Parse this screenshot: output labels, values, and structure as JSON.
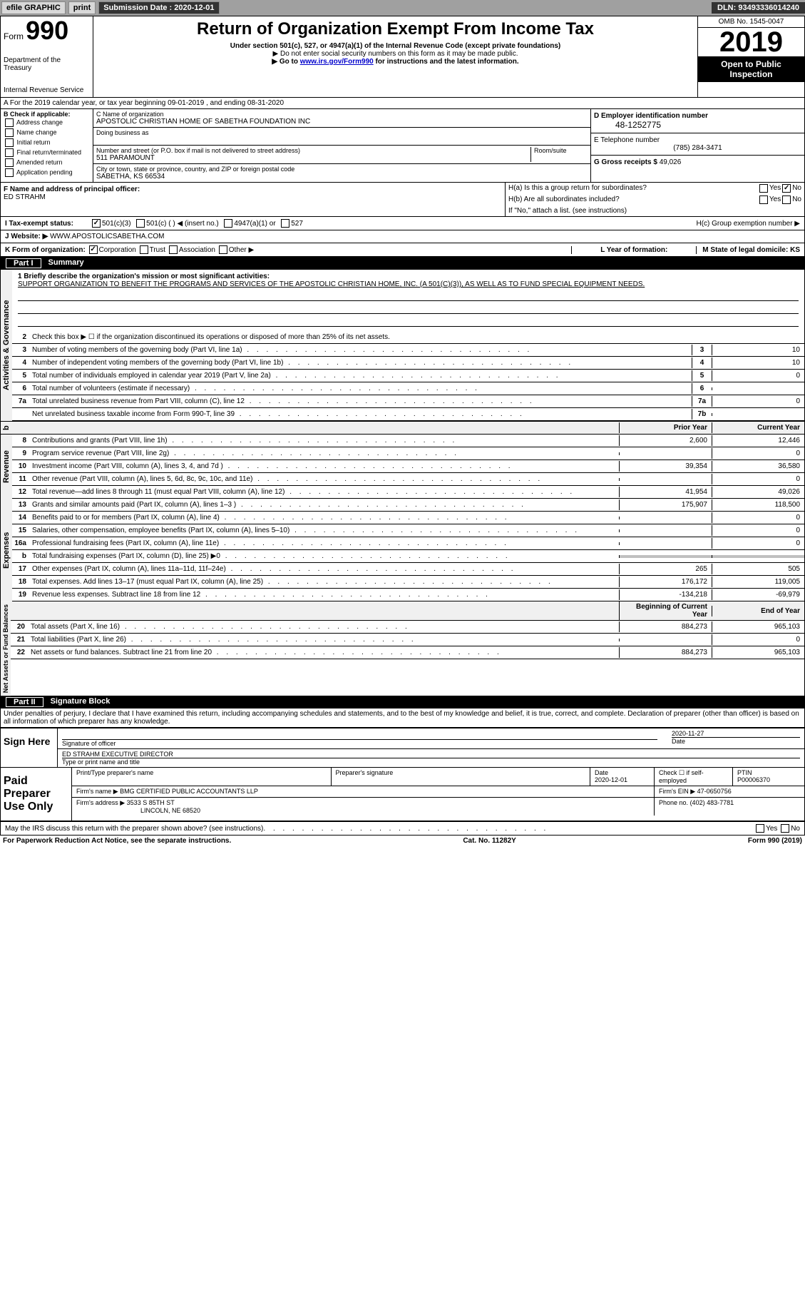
{
  "topbar": {
    "efile": "efile GRAPHIC",
    "print": "print",
    "submission_label": "Submission Date : 2020-12-01",
    "dln": "DLN: 93493336014240"
  },
  "form": {
    "form_word": "Form",
    "form_num": "990",
    "title": "Return of Organization Exempt From Income Tax",
    "subtitle": "Under section 501(c), 527, or 4947(a)(1) of the Internal Revenue Code (except private foundations)",
    "warning": "▶ Do not enter social security numbers on this form as it may be made public.",
    "goto_pre": "▶ Go to ",
    "goto_link": "www.irs.gov/Form990",
    "goto_post": " for instructions and the latest information.",
    "dept": "Department of the Treasury",
    "irs": "Internal Revenue Service",
    "omb": "OMB No. 1545-0047",
    "year": "2019",
    "open": "Open to Public Inspection"
  },
  "lineA": "A For the 2019 calendar year, or tax year beginning 09-01-2019  , and ending 08-31-2020",
  "sectionB": {
    "header": "B Check if applicable:",
    "items": [
      "Address change",
      "Name change",
      "Initial return",
      "Final return/terminated",
      "Amended return",
      "Application pending"
    ]
  },
  "sectionC": {
    "name_label": "C Name of organization",
    "name": "APOSTOLIC CHRISTIAN HOME OF SABETHA FOUNDATION INC",
    "dba_label": "Doing business as",
    "addr_label": "Number and street (or P.O. box if mail is not delivered to street address)",
    "room_label": "Room/suite",
    "address": "511 PARAMOUNT",
    "city_label": "City or town, state or province, country, and ZIP or foreign postal code",
    "city": "SABETHA, KS  66534"
  },
  "sectionD": {
    "label": "D Employer identification number",
    "ein": "48-1252775"
  },
  "sectionE": {
    "label": "E Telephone number",
    "phone": "(785) 284-3471"
  },
  "sectionF": {
    "label": "F Name and address of principal officer:",
    "name": "ED STRAHM"
  },
  "sectionG": {
    "label": "G Gross receipts $",
    "amount": "49,026"
  },
  "sectionH": {
    "a": "H(a)  Is this a group return for subordinates?",
    "b": "H(b)  Are all subordinates included?",
    "b_note": "If \"No,\" attach a list. (see instructions)",
    "c": "H(c)  Group exemption number ▶",
    "yes": "Yes",
    "no": "No"
  },
  "lineI": {
    "label": "I     Tax-exempt status:",
    "opts": [
      "501(c)(3)",
      "501(c) (  ) ◀ (insert no.)",
      "4947(a)(1) or",
      "527"
    ]
  },
  "lineJ": {
    "label": "J    Website: ▶",
    "value": "WWW.APOSTOLICSABETHA.COM"
  },
  "lineK": {
    "label": "K Form of organization:",
    "opts": [
      "Corporation",
      "Trust",
      "Association",
      "Other ▶"
    ]
  },
  "lineL": {
    "label": "L Year of formation:"
  },
  "lineM": {
    "label": "M State of legal domicile: KS"
  },
  "part1": {
    "num": "Part I",
    "title": "Summary"
  },
  "summary": {
    "mission_label": "1  Briefly describe the organization's mission or most significant activities:",
    "mission": "SUPPORT ORGANIZATION TO BENEFIT THE PROGRAMS AND SERVICES OF THE APOSTOLIC CHRISTIAN HOME, INC. (A 501(C)(3)), AS WELL AS TO FUND SPECIAL EQUIPMENT NEEDS.",
    "line2": "Check this box ▶ ☐ if the organization discontinued its operations or disposed of more than 25% of its net assets.",
    "lines_boxed": [
      {
        "n": "3",
        "label": "Number of voting members of the governing body (Part VI, line 1a)",
        "box": "3",
        "val": "10"
      },
      {
        "n": "4",
        "label": "Number of independent voting members of the governing body (Part VI, line 1b)",
        "box": "4",
        "val": "10"
      },
      {
        "n": "5",
        "label": "Total number of individuals employed in calendar year 2019 (Part V, line 2a)",
        "box": "5",
        "val": "0"
      },
      {
        "n": "6",
        "label": "Total number of volunteers (estimate if necessary)",
        "box": "6",
        "val": ""
      },
      {
        "n": "7a",
        "label": "Total unrelated business revenue from Part VIII, column (C), line 12",
        "box": "7a",
        "val": "0"
      },
      {
        "n": "",
        "label": "Net unrelated business taxable income from Form 990-T, line 39",
        "box": "7b",
        "val": ""
      }
    ],
    "col_prior": "Prior Year",
    "col_current": "Current Year",
    "revenue": [
      {
        "n": "8",
        "label": "Contributions and grants (Part VIII, line 1h)",
        "prior": "2,600",
        "cur": "12,446"
      },
      {
        "n": "9",
        "label": "Program service revenue (Part VIII, line 2g)",
        "prior": "",
        "cur": "0"
      },
      {
        "n": "10",
        "label": "Investment income (Part VIII, column (A), lines 3, 4, and 7d )",
        "prior": "39,354",
        "cur": "36,580"
      },
      {
        "n": "11",
        "label": "Other revenue (Part VIII, column (A), lines 5, 6d, 8c, 9c, 10c, and 11e)",
        "prior": "",
        "cur": "0"
      },
      {
        "n": "12",
        "label": "Total revenue—add lines 8 through 11 (must equal Part VIII, column (A), line 12)",
        "prior": "41,954",
        "cur": "49,026"
      }
    ],
    "expenses": [
      {
        "n": "13",
        "label": "Grants and similar amounts paid (Part IX, column (A), lines 1–3 )",
        "prior": "175,907",
        "cur": "118,500"
      },
      {
        "n": "14",
        "label": "Benefits paid to or for members (Part IX, column (A), line 4)",
        "prior": "",
        "cur": "0"
      },
      {
        "n": "15",
        "label": "Salaries, other compensation, employee benefits (Part IX, column (A), lines 5–10)",
        "prior": "",
        "cur": "0"
      },
      {
        "n": "16a",
        "label": "Professional fundraising fees (Part IX, column (A), line 11e)",
        "prior": "",
        "cur": "0"
      },
      {
        "n": "b",
        "label": "Total fundraising expenses (Part IX, column (D), line 25) ▶0",
        "prior": "GRAY",
        "cur": "GRAY"
      },
      {
        "n": "17",
        "label": "Other expenses (Part IX, column (A), lines 11a–11d, 11f–24e)",
        "prior": "265",
        "cur": "505"
      },
      {
        "n": "18",
        "label": "Total expenses. Add lines 13–17 (must equal Part IX, column (A), line 25)",
        "prior": "176,172",
        "cur": "119,005"
      },
      {
        "n": "19",
        "label": "Revenue less expenses. Subtract line 18 from line 12",
        "prior": "-134,218",
        "cur": "-69,979"
      }
    ],
    "col_begin": "Beginning of Current Year",
    "col_end": "End of Year",
    "netassets": [
      {
        "n": "20",
        "label": "Total assets (Part X, line 16)",
        "prior": "884,273",
        "cur": "965,103"
      },
      {
        "n": "21",
        "label": "Total liabilities (Part X, line 26)",
        "prior": "",
        "cur": "0"
      },
      {
        "n": "22",
        "label": "Net assets or fund balances. Subtract line 21 from line 20",
        "prior": "884,273",
        "cur": "965,103"
      }
    ]
  },
  "sidelabels": {
    "gov": "Activities & Governance",
    "rev": "Revenue",
    "exp": "Expenses",
    "net": "Net Assets or Fund Balances"
  },
  "part2": {
    "num": "Part II",
    "title": "Signature Block",
    "declaration": "Under penalties of perjury, I declare that I have examined this return, including accompanying schedules and statements, and to the best of my knowledge and belief, it is true, correct, and complete. Declaration of preparer (other than officer) is based on all information of which preparer has any knowledge."
  },
  "sign": {
    "left": "Sign Here",
    "sig_label": "Signature of officer",
    "date": "2020-11-27",
    "date_label": "Date",
    "name": "ED STRAHM EXECUTIVE DIRECTOR",
    "name_label": "Type or print name and title"
  },
  "paid": {
    "left": "Paid Preparer Use Only",
    "h_name": "Print/Type preparer's name",
    "h_sig": "Preparer's signature",
    "h_date": "Date",
    "date": "2020-12-01",
    "h_self": "Check ☐ if self-employed",
    "h_ptin": "PTIN",
    "ptin": "P00006370",
    "firm_label": "Firm's name     ▶",
    "firm": "BMG CERTIFIED PUBLIC ACCOUNTANTS LLP",
    "ein_label": "Firm's EIN ▶",
    "ein": "47-0650756",
    "addr_label": "Firm's address ▶",
    "addr1": "3533 S 85TH ST",
    "addr2": "LINCOLN, NE  68520",
    "phone_label": "Phone no.",
    "phone": "(402) 483-7781"
  },
  "discuss": {
    "label": "May the IRS discuss this return with the preparer shown above? (see instructions)",
    "yes": "Yes",
    "no": "No"
  },
  "footer": {
    "left": "For Paperwork Reduction Act Notice, see the separate instructions.",
    "mid": "Cat. No. 11282Y",
    "right": "Form 990 (2019)"
  }
}
